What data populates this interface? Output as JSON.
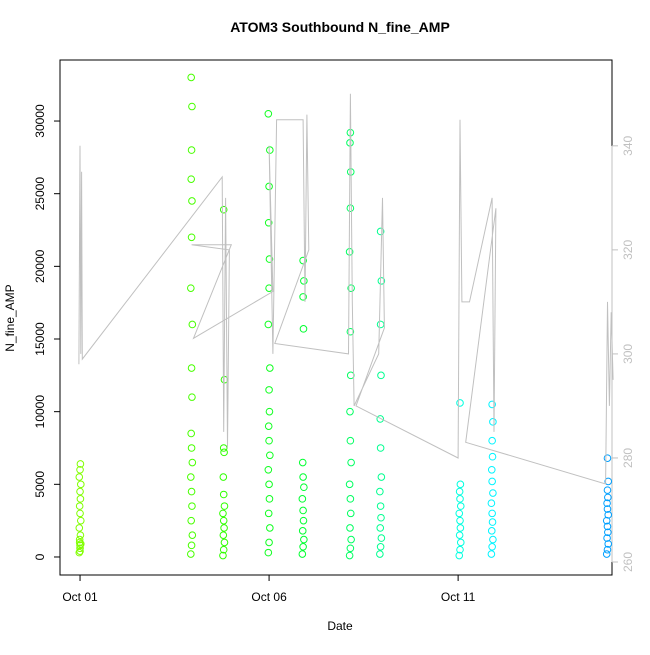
{
  "chart_data": {
    "type": "scatter",
    "title": "ATOM3 Southbound N_fine_AMP",
    "x_label": "Date",
    "y_label": "N_fine_AMP",
    "xlim": [
      0.47,
      15.07
    ],
    "xticks": [
      {
        "value": 1,
        "label": "Oct 01"
      },
      {
        "value": 6,
        "label": "Oct 06"
      },
      {
        "value": 11,
        "label": "Oct 11"
      }
    ],
    "ylim": [
      -1240,
      34200
    ],
    "yticks": [
      0,
      5000,
      10000,
      15000,
      20000,
      25000,
      30000
    ],
    "y2lim": [
      257.5,
      356.5
    ],
    "y2ticks": [
      260,
      280,
      300,
      320,
      340
    ],
    "y2_color": "#c0c0c0",
    "series": [
      {
        "color": "#80ff00",
        "x": [
          0.98,
          1.0,
          1.02,
          0.99,
          1.01,
          1.0,
          0.98,
          1.02,
          1.0,
          0.99,
          1.01,
          1.0,
          1.02,
          0.98,
          1.0,
          1.01,
          0.99,
          1.0
        ],
        "values": [
          300,
          600,
          900,
          1200,
          1500,
          800,
          2000,
          2500,
          3000,
          3500,
          4000,
          4500,
          5000,
          5500,
          6000,
          6400,
          1000,
          400
        ]
      },
      {
        "color": "#48ff00",
        "x": [
          3.93,
          3.95,
          3.97,
          3.94,
          3.96,
          3.95,
          3.93,
          3.97,
          3.95,
          3.94,
          3.96,
          3.95,
          3.97,
          3.93,
          3.95,
          3.96,
          3.94,
          3.95,
          3.96,
          3.94
        ],
        "values": [
          200,
          800,
          1500,
          2500,
          3500,
          4500,
          5500,
          6500,
          7500,
          8500,
          11000,
          13000,
          16000,
          18500,
          22000,
          24500,
          26000,
          28000,
          31000,
          33000
        ]
      },
      {
        "color": "#30ff00",
        "x": [
          4.78,
          4.8,
          4.82,
          4.79,
          4.81,
          4.8,
          4.78,
          4.82,
          4.8,
          4.79,
          4.81,
          4.8,
          4.82,
          4.8
        ],
        "values": [
          100,
          500,
          1000,
          1500,
          2000,
          2500,
          3000,
          3500,
          4300,
          5500,
          7200,
          7500,
          12200,
          23900
        ]
      },
      {
        "color": "#10ff20",
        "x": [
          5.98,
          6.0,
          6.02,
          5.99,
          6.01,
          6.0,
          5.98,
          6.02,
          6.0,
          5.99,
          6.01,
          6.0,
          6.02,
          5.98,
          6.0,
          6.01,
          5.99,
          6.0,
          6.02,
          5.98
        ],
        "values": [
          300,
          1000,
          2000,
          3000,
          4000,
          5000,
          6000,
          7000,
          8000,
          9000,
          10000,
          11500,
          13000,
          16000,
          18500,
          20500,
          23000,
          25500,
          28000,
          30500
        ]
      },
      {
        "color": "#00ff30",
        "x": [
          6.88,
          6.9,
          6.92,
          6.89,
          6.91,
          6.9,
          6.88,
          6.92,
          6.9,
          6.89,
          6.91,
          6.9,
          6.92,
          6.9
        ],
        "values": [
          200,
          700,
          1200,
          1800,
          2500,
          3200,
          4000,
          4800,
          5500,
          6500,
          15700,
          17900,
          19000,
          20400
        ]
      },
      {
        "color": "#00ff60",
        "x": [
          8.13,
          8.15,
          8.17,
          8.14,
          8.16,
          8.15,
          8.13,
          8.17,
          8.15,
          8.14,
          8.16,
          8.15,
          8.17,
          8.13,
          8.15,
          8.16,
          8.14,
          8.15
        ],
        "values": [
          100,
          600,
          1200,
          2000,
          3000,
          4000,
          5000,
          6500,
          8000,
          10000,
          12500,
          15500,
          18500,
          21000,
          24000,
          26500,
          28500,
          29200
        ]
      },
      {
        "color": "#00ff90",
        "x": [
          8.93,
          8.95,
          8.97,
          8.94,
          8.96,
          8.95,
          8.93,
          8.97,
          8.95,
          8.94,
          8.96,
          8.95,
          8.97,
          8.95
        ],
        "values": [
          200,
          700,
          1300,
          2000,
          2700,
          3500,
          4500,
          5500,
          7500,
          9500,
          12500,
          16000,
          19000,
          22400
        ]
      },
      {
        "color": "#00ffe0",
        "x": [
          11.03,
          11.05,
          11.07,
          11.04,
          11.06,
          11.05,
          11.03,
          11.07,
          11.05,
          11.04,
          11.06,
          11.05
        ],
        "values": [
          100,
          500,
          1000,
          1500,
          2000,
          2500,
          3000,
          3500,
          4000,
          4500,
          5000,
          10600
        ]
      },
      {
        "color": "#00f4ff",
        "x": [
          11.88,
          11.9,
          11.92,
          11.89,
          11.91,
          11.9,
          11.88,
          11.92,
          11.9,
          11.89,
          11.91,
          11.9,
          11.92,
          11.9
        ],
        "values": [
          200,
          700,
          1200,
          1800,
          2400,
          3000,
          3700,
          4400,
          5200,
          6000,
          6900,
          8000,
          9300,
          10500
        ]
      },
      {
        "color": "#00a0ff",
        "x": [
          14.93,
          14.95,
          14.97,
          14.94,
          14.96,
          14.95,
          14.93,
          14.97,
          14.95,
          14.94,
          14.96,
          14.95,
          14.97,
          14.95
        ],
        "values": [
          200,
          500,
          900,
          1300,
          1700,
          2100,
          2500,
          2900,
          3300,
          3700,
          4100,
          4600,
          5200,
          6800
        ]
      },
      {
        "type": "line",
        "axis": "y2",
        "color": "#c0c0c0",
        "x": [
          0.97,
          1.0,
          1.02,
          1.04,
          1.06,
          4.76,
          4.8,
          4.85,
          4.9,
          4.95,
          3.95,
          5.0,
          4.0,
          6.1,
          6.0,
          6.1,
          6.2,
          6.9,
          6.95,
          7.0,
          7.05,
          6.15,
          8.1,
          8.15,
          8.2,
          8.25,
          8.9,
          9.0,
          9.05,
          8.3,
          11.0,
          11.05,
          11.1,
          11.3,
          11.9,
          11.95,
          12.0,
          11.2,
          14.9,
          14.95,
          15.0,
          15.05,
          15.1
        ],
        "values": [
          298,
          340,
          300,
          335,
          299,
          334,
          285,
          330,
          282,
          320,
          321,
          321,
          303,
          312,
          340,
          300,
          345,
          345,
          310,
          346,
          320,
          302,
          300,
          350,
          310,
          290,
          300,
          330,
          305,
          290,
          280,
          345,
          310,
          310,
          330,
          285,
          328,
          283,
          275,
          310,
          290,
          308,
          295
        ]
      }
    ]
  }
}
